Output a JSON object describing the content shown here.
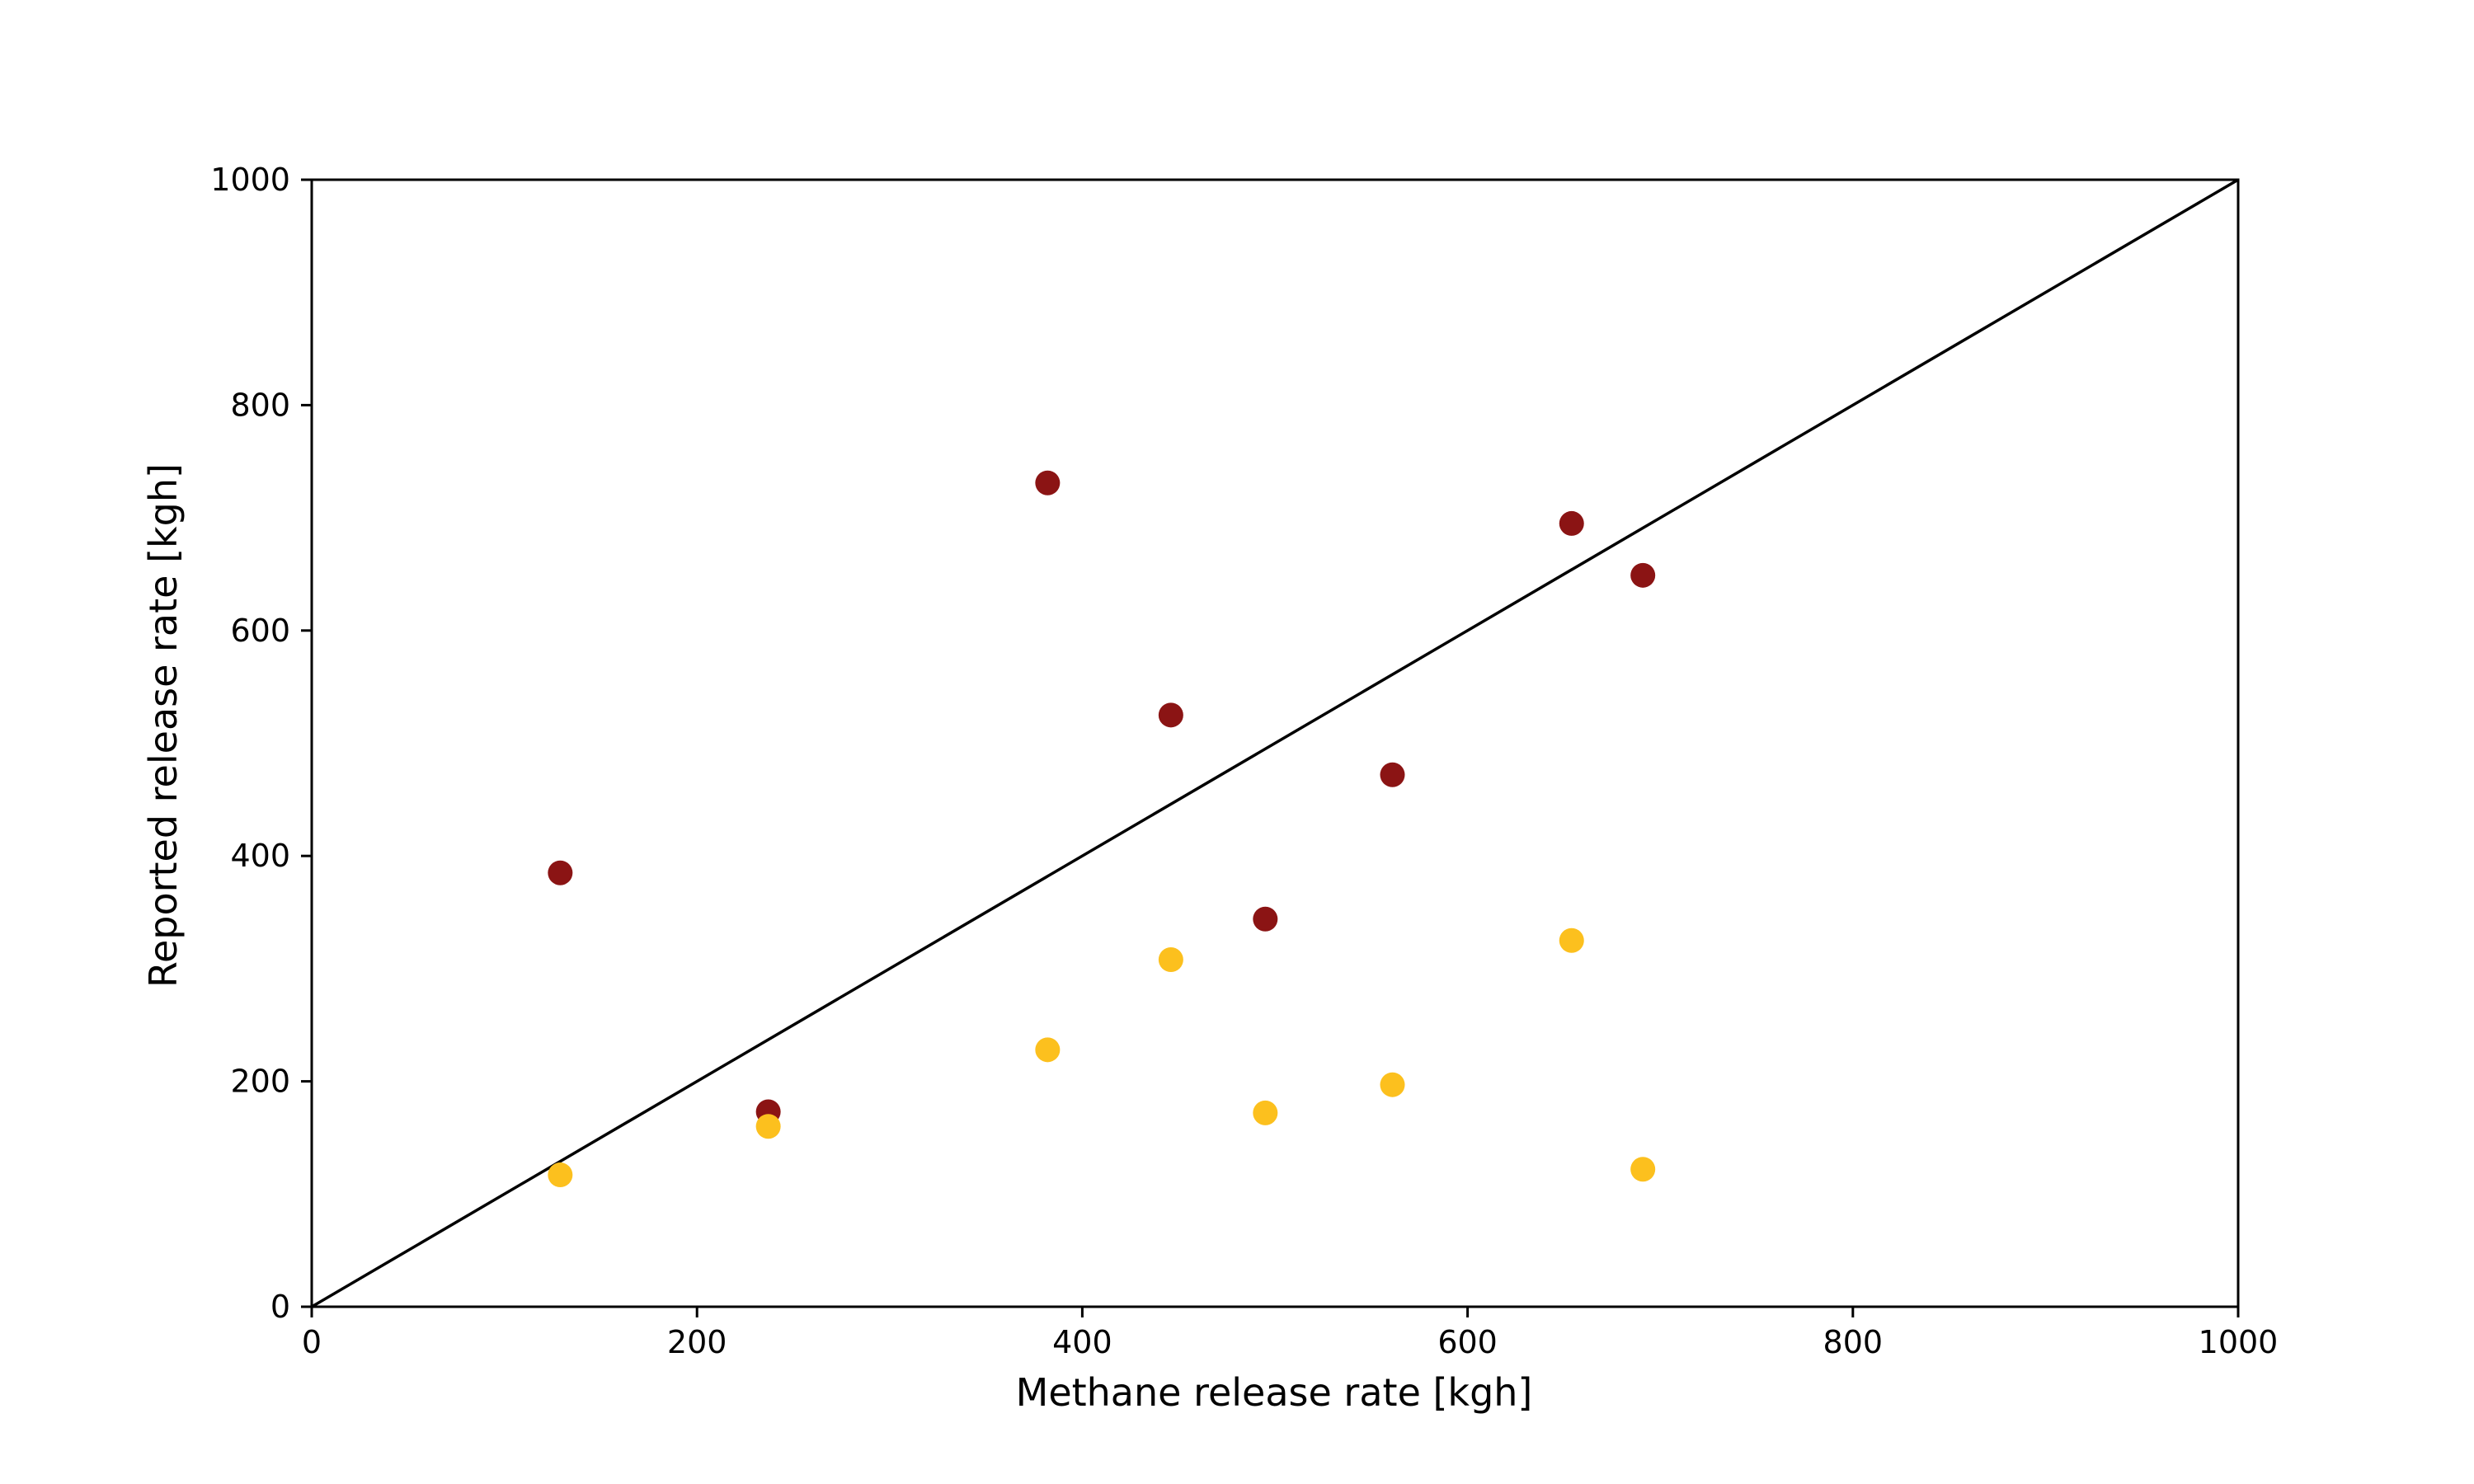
{
  "chart_data": {
    "type": "scatter",
    "title": "",
    "xlabel": "Methane release rate [kgh]",
    "ylabel": "Reported release rate [kgh]",
    "xlim": [
      0,
      1000
    ],
    "ylim": [
      0,
      1000
    ],
    "x_ticks": [
      0,
      200,
      400,
      600,
      800,
      1000
    ],
    "y_ticks": [
      0,
      200,
      400,
      600,
      800,
      1000
    ],
    "grid": false,
    "reference_line": {
      "type": "identity",
      "from": [
        0,
        0
      ],
      "to": [
        1000,
        1000
      ],
      "color": "#000000"
    },
    "series": [
      {
        "color": "#8b1414",
        "points": [
          {
            "x": 129,
            "y": 385
          },
          {
            "x": 237,
            "y": 173
          },
          {
            "x": 382,
            "y": 731
          },
          {
            "x": 446,
            "y": 525
          },
          {
            "x": 495,
            "y": 344
          },
          {
            "x": 561,
            "y": 472
          },
          {
            "x": 654,
            "y": 695
          },
          {
            "x": 691,
            "y": 649
          }
        ]
      },
      {
        "color": "#fcc01e",
        "points": [
          {
            "x": 129,
            "y": 117
          },
          {
            "x": 237,
            "y": 160
          },
          {
            "x": 382,
            "y": 228
          },
          {
            "x": 446,
            "y": 308
          },
          {
            "x": 495,
            "y": 172
          },
          {
            "x": 561,
            "y": 197
          },
          {
            "x": 654,
            "y": 325
          },
          {
            "x": 691,
            "y": 122
          }
        ]
      }
    ]
  }
}
